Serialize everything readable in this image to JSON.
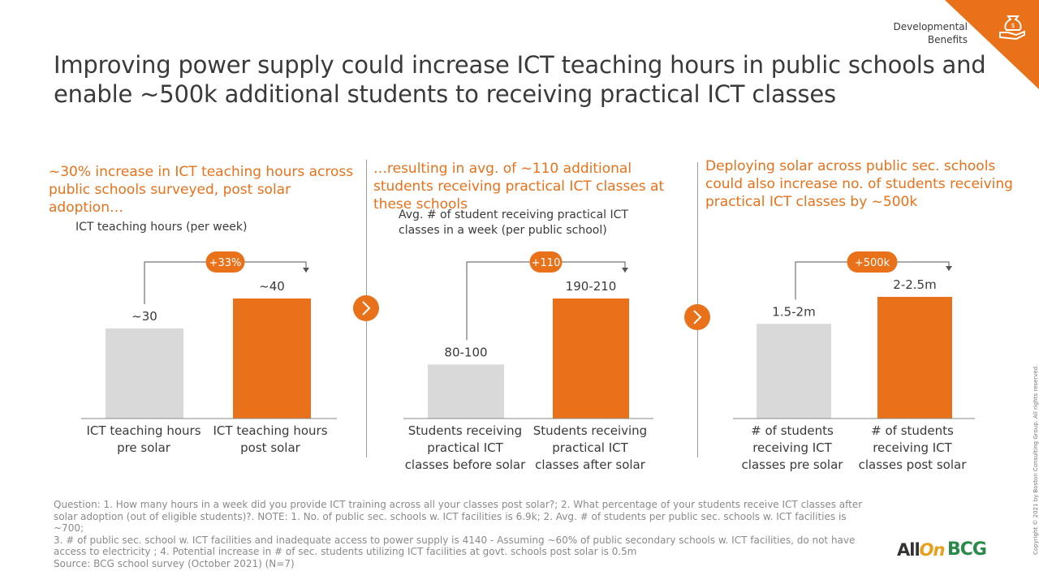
{
  "section_tag": "Developmental Benefits",
  "title": "Improving power supply could increase ICT teaching hours in public schools and enable ~500k additional students to receiving practical ICT classes",
  "icon": "hand-holding-money-bag-icon",
  "colors": {
    "accent": "#e8711a",
    "muted_bar": "#d9d9d9",
    "text": "#3a3a3a"
  },
  "panels": [
    {
      "header": "~30% increase in ICT teaching hours across public schools surveyed, post solar adoption…",
      "chart_label": "ICT teaching hours (per week)",
      "delta": "+33%",
      "bars": [
        {
          "value_label": "~30",
          "category": "ICT teaching hours pre solar"
        },
        {
          "value_label": "~40",
          "category": "ICT teaching hours post solar"
        }
      ]
    },
    {
      "header": "…resulting in avg. of ~110 additional students receiving practical ICT classes at these schools",
      "chart_label": "Avg. # of student receiving practical ICT classes in a week (per public school)",
      "delta": "+110",
      "bars": [
        {
          "value_label": "80-100",
          "category": "Students receiving practical ICT classes before solar"
        },
        {
          "value_label": "190-210",
          "category": "Students receiving practical ICT classes after solar"
        }
      ]
    },
    {
      "header": "Deploying solar across public sec. schools could also increase no. of students receiving practical ICT classes by ~500k",
      "chart_label": "",
      "delta": "+500k",
      "bars": [
        {
          "value_label": "1.5-2m",
          "category": "# of students receiving ICT classes pre solar"
        },
        {
          "value_label": "2-2.5m",
          "category": "# of students receiving ICT classes post solar"
        }
      ]
    }
  ],
  "chart_data": [
    {
      "type": "bar",
      "title": "",
      "ylabel": "ICT teaching hours (per week)",
      "categories": [
        "ICT teaching hours pre solar",
        "ICT teaching hours post solar"
      ],
      "values": [
        30,
        40
      ],
      "ylim": [
        0,
        40
      ],
      "annotation": "+33%",
      "colors": [
        "#d9d9d9",
        "#e8711a"
      ]
    },
    {
      "type": "bar",
      "title": "",
      "ylabel": "Avg. # of student receiving practical ICT classes in a week (per public school)",
      "categories": [
        "Students receiving practical ICT classes before solar",
        "Students receiving practical ICT classes after solar"
      ],
      "values": [
        90,
        200
      ],
      "ylim": [
        0,
        200
      ],
      "annotation": "+110",
      "colors": [
        "#d9d9d9",
        "#e8711a"
      ]
    },
    {
      "type": "bar",
      "title": "",
      "ylabel": "",
      "categories": [
        "# of students receiving ICT classes pre solar",
        "# of students receiving ICT classes post solar"
      ],
      "values": [
        1.75,
        2.25
      ],
      "ylim": [
        0,
        2.25
      ],
      "annotation": "+500k",
      "colors": [
        "#d9d9d9",
        "#e8711a"
      ]
    }
  ],
  "footnote": {
    "lines": [
      "Question: 1. How many hours in a week did you provide ICT training across all your classes post solar?; 2. What percentage of your students receive ICT classes after",
      "solar adoption (out of eligible students)?. NOTE: 1. No. of public sec. schools w. ICT facilities is 6.9k; 2. Avg. # of students per public sec. schools w. ICT facilities is ~700;",
      "3. # of public sec. school w. ICT facilities and inadequate access to power supply is 4140 - Assuming ~60% of public secondary schools w. ICT facilities, do not have",
      "access to electricity ; 4. Potential increase in # of sec. students utilizing ICT facilities at govt. schools post solar is 0.5m",
      "Source: BCG school survey (October 2021) (N=7)"
    ]
  },
  "copyright": "Copyright © 2021 by Boston Consulting Group. All rights reserved.",
  "logos": {
    "allon_1": "All",
    "allon_2": "On",
    "bcg": "BCG"
  }
}
